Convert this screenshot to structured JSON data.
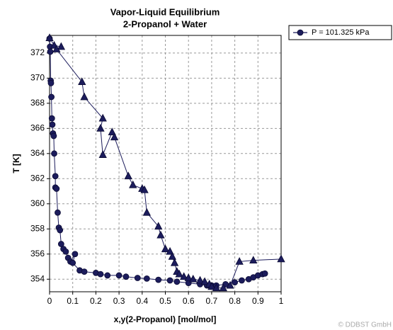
{
  "chart_data": {
    "type": "scatter-line",
    "title": "Vapor-Liquid Equilibrium",
    "subtitle": "2-Propanol + Water",
    "x_label": "x,y(2-Propanol) [mol/mol]",
    "y_label": "T [K]",
    "watermark": "© DDBST GmbH",
    "xlim": [
      0,
      1
    ],
    "ylim": [
      353,
      373.4
    ],
    "xticks": [
      0,
      0.1,
      0.2,
      0.3,
      0.4,
      0.5,
      0.6,
      0.7,
      0.8,
      0.9,
      1
    ],
    "yticks": [
      354,
      356,
      358,
      360,
      362,
      364,
      366,
      368,
      370,
      372
    ],
    "grid": true,
    "legend": "outside-top-right",
    "series": [
      {
        "name": "P = 101.325 kPa",
        "color": "#1c1c5c",
        "marker": "circle",
        "x": [
          0,
          0.002,
          0.003,
          0.005,
          0.006,
          0.008,
          0.01,
          0.012,
          0.015,
          0.018,
          0.02,
          0.025,
          0.025,
          0.03,
          0.035,
          0.04,
          0.045,
          0.05,
          0.06,
          0.07,
          0.08,
          0.09,
          0.11,
          0.1,
          0.13,
          0.15,
          0.2,
          0.22,
          0.25,
          0.3,
          0.33,
          0.38,
          0.42,
          0.47,
          0.52,
          0.55,
          0.6,
          0.65,
          0.68,
          0.7,
          0.72,
          0.76,
          0.8,
          0.83,
          0.86,
          0.88,
          0.9,
          0.92,
          0.93
        ],
        "values": [
          373.15,
          372.5,
          372.1,
          369.8,
          369.6,
          368.5,
          366.8,
          366.3,
          365.6,
          365.4,
          364,
          362.2,
          361.3,
          361.2,
          359.3,
          358.1,
          357.9,
          356.8,
          356.4,
          356.2,
          355.7,
          355.4,
          356.0,
          355.3,
          354.7,
          354.6,
          354.5,
          354.4,
          354.3,
          354.3,
          354.2,
          354.1,
          354.05,
          353.95,
          353.9,
          353.8,
          353.7,
          353.6,
          353.5,
          353.5,
          353.5,
          353.6,
          353.75,
          353.9,
          354.0,
          354.15,
          354.3,
          354.4,
          354.45
        ]
      },
      {
        "color": "#1c1c5c",
        "marker": "triangle",
        "x": [
          0,
          0.02,
          0.05,
          0.03,
          0.14,
          0.15,
          0.23,
          0.22,
          0.23,
          0.27,
          0.28,
          0.34,
          0.36,
          0.4,
          0.41,
          0.42,
          0.47,
          0.48,
          0.5,
          0.52,
          0.53,
          0.54,
          0.55,
          0.56,
          0.58,
          0.6,
          0.62,
          0.65,
          0.67,
          0.69,
          0.7,
          0.72,
          0.75,
          0.78,
          0.82,
          0.88,
          1.0
        ],
        "values": [
          373.2,
          372.6,
          372.5,
          372.3,
          369.7,
          368.5,
          366.8,
          366,
          363.9,
          365.7,
          365.3,
          362.2,
          361.5,
          361.2,
          361.1,
          359.3,
          358.2,
          357.5,
          356.4,
          356.2,
          355.8,
          355.3,
          354.6,
          354.4,
          354.2,
          354.1,
          354.0,
          353.9,
          353.8,
          353.6,
          353.4,
          353.3,
          353.3,
          353.5,
          355.4,
          355.5,
          355.6
        ]
      }
    ]
  }
}
